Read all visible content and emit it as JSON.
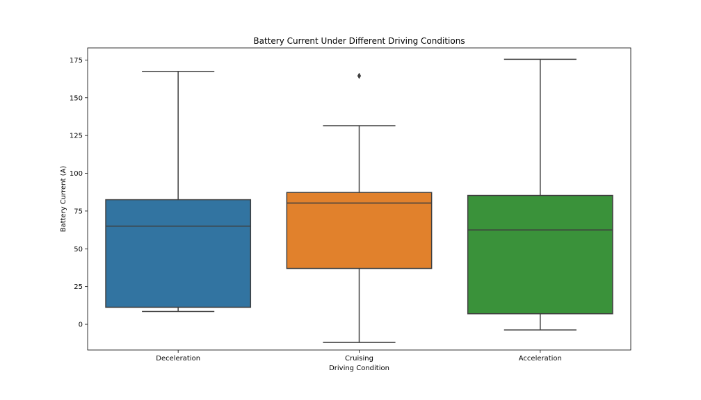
{
  "chart_data": {
    "type": "box",
    "title": "Battery Current Under Different Driving Conditions",
    "xlabel": "Driving Condition",
    "ylabel": "Battery Current (A)",
    "ylim": [
      -17,
      183
    ],
    "yticks": [
      0,
      25,
      50,
      75,
      100,
      125,
      150,
      175
    ],
    "grid": false,
    "categories": [
      "Deceleration",
      "Cruising",
      "Acceleration"
    ],
    "boxes": [
      {
        "category": "Deceleration",
        "whisker_low": 8.5,
        "q1": 11.3,
        "median": 65,
        "q3": 82.5,
        "whisker_high": 167.5,
        "outliers": [],
        "color": "#3274a1"
      },
      {
        "category": "Cruising",
        "whisker_low": -12,
        "q1": 37,
        "median": 80.3,
        "q3": 87.3,
        "whisker_high": 131.5,
        "outliers": [
          164.5
        ],
        "color": "#e1812c"
      },
      {
        "category": "Acceleration",
        "whisker_low": -3.7,
        "q1": 7,
        "median": 62.5,
        "q3": 85.3,
        "whisker_high": 175.5,
        "outliers": [],
        "color": "#3a923a"
      }
    ]
  }
}
